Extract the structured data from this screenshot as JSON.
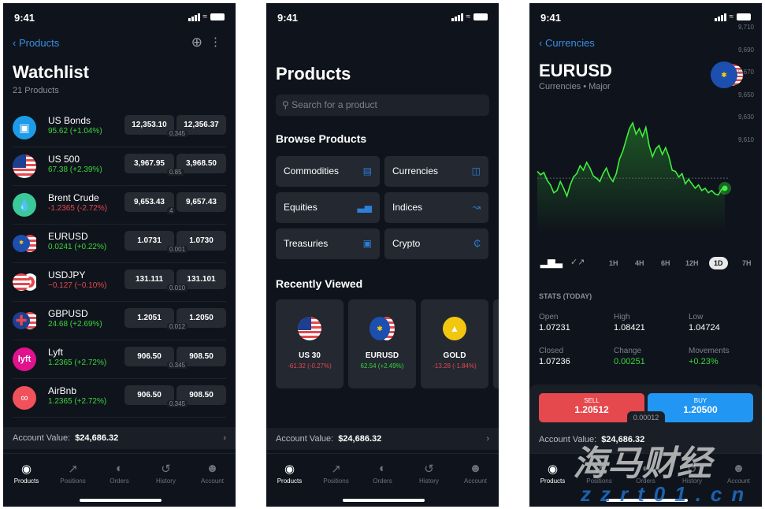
{
  "status": {
    "time": "9:41"
  },
  "watchlist": {
    "back": "Products",
    "title": "Watchlist",
    "count": "21 Products",
    "items": [
      {
        "name": "US Bonds",
        "change": "95.62 (+1.04%)",
        "dir": "up",
        "sell": "12,353.10",
        "buy": "12,356.37",
        "spread": "0.345",
        "icon": "bond-icon"
      },
      {
        "name": "US 500",
        "change": "67.38 (+2.39%)",
        "dir": "up",
        "sell": "3,967.95",
        "buy": "3,968.50",
        "spread": "0.85",
        "icon": "us-flag-icon"
      },
      {
        "name": "Brent Crude",
        "change": "-1.2365 (-2.72%)",
        "dir": "down",
        "sell": "9,653.43",
        "buy": "9,657.43",
        "spread": "4",
        "icon": "oil-drop-icon"
      },
      {
        "name": "EURUSD",
        "change": "0.0241 (+0.22%)",
        "dir": "up",
        "sell": "1.0731",
        "buy": "1.0730",
        "spread": "0.001",
        "icon": "eu-us-flag-icon"
      },
      {
        "name": "USDJPY",
        "change": "−0.127 (−0.10%)",
        "dir": "down",
        "sell": "131.111",
        "buy": "131.101",
        "spread": "0.010",
        "icon": "us-jp-flag-icon"
      },
      {
        "name": "GBPUSD",
        "change": "24.68 (+2.69%)",
        "dir": "up",
        "sell": "1.2051",
        "buy": "1.2050",
        "spread": "0.012",
        "icon": "gb-us-flag-icon"
      },
      {
        "name": "Lyft",
        "change": "1.2365 (+2.72%)",
        "dir": "up",
        "sell": "906.50",
        "buy": "908.50",
        "spread": "0.345",
        "icon": "lyft-logo-icon"
      },
      {
        "name": "AirBnb",
        "change": "1.2365 (+2.72%)",
        "dir": "up",
        "sell": "906.50",
        "buy": "908.50",
        "spread": "0.345",
        "icon": "airbnb-logo-icon"
      }
    ]
  },
  "account": {
    "label": "Account Value:",
    "value": "$24,686.32"
  },
  "tabs": [
    "Products",
    "Positions",
    "Orders",
    "History",
    "Account"
  ],
  "products": {
    "title": "Products",
    "search_placeholder": "Search for a product",
    "browse_title": "Browse Products",
    "categories": [
      "Commodities",
      "Currencies",
      "Equities",
      "Indices",
      "Treasuries",
      "Crypto"
    ],
    "recent_title": "Recently Viewed",
    "recent": [
      {
        "name": "US 30",
        "change": "-61.32 (-0.27%)",
        "dir": "down"
      },
      {
        "name": "EURUSD",
        "change": "62.54 (+2.49%)",
        "dir": "up"
      },
      {
        "name": "GOLD",
        "change": "-13.28 (-1.84%)",
        "dir": "down"
      }
    ]
  },
  "detail": {
    "back": "Currencies",
    "title": "EURUSD",
    "subtitle": "Currencies • Major",
    "timeframes": [
      "1H",
      "4H",
      "6H",
      "12H",
      "1D",
      "7H"
    ],
    "selected_timeframe": "1D",
    "stats_title": "STATS (TODAY)",
    "stats": [
      {
        "label": "Open",
        "value": "1.07231"
      },
      {
        "label": "High",
        "value": "1.08421"
      },
      {
        "label": "Low",
        "value": "1.04724"
      },
      {
        "label": "Closed",
        "value": "1.07236"
      },
      {
        "label": "Change",
        "value": "0.00251",
        "color": "green"
      },
      {
        "label": "Movements",
        "value": "+0.23%",
        "color": "green"
      }
    ],
    "sell_label": "SELL",
    "sell_price": "1.20512",
    "buy_label": "BUY",
    "buy_price": "1.20500",
    "spread": "0.00012"
  },
  "chart_data": {
    "type": "line",
    "yticks": [
      "9,710",
      "9,690",
      "9,670",
      "9,650",
      "9,630",
      "9,610"
    ],
    "ylim": [
      9605,
      9715
    ],
    "reference_line": 9661,
    "values": [
      9667,
      9664,
      9666,
      9659,
      9655,
      9648,
      9650,
      9658,
      9652,
      9645,
      9655,
      9662,
      9665,
      9672,
      9668,
      9675,
      9670,
      9663,
      9661,
      9658,
      9665,
      9670,
      9662,
      9658,
      9665,
      9678,
      9685,
      9695,
      9705,
      9710,
      9700,
      9705,
      9698,
      9706,
      9690,
      9680,
      9687,
      9690,
      9682,
      9688,
      9680,
      9668,
      9667,
      9662,
      9665,
      9656,
      9660,
      9656,
      9652,
      9655,
      9650,
      9652,
      9648,
      9650,
      9647,
      9646,
      9651,
      9652
    ],
    "line_color": "#3df03d"
  },
  "colors": {
    "accent": "#3a8ee6",
    "up": "#3bd43b",
    "down": "#e5484d",
    "sell": "#e5484d",
    "buy": "#2196f3"
  },
  "watermark": {
    "cn": "海马财经",
    "url": "zzrt01.cn"
  }
}
